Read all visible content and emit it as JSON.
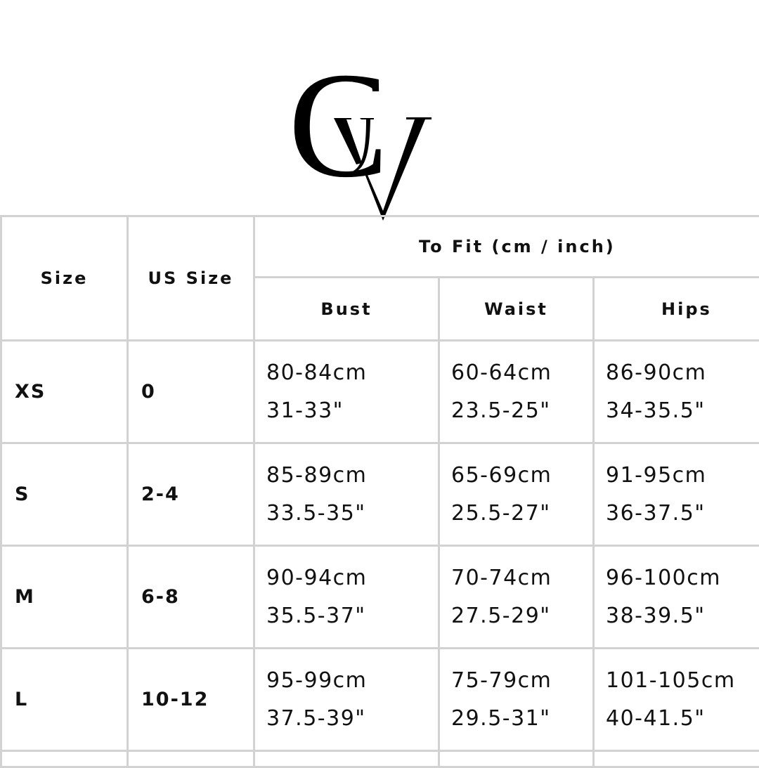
{
  "logo": {
    "text": "GV"
  },
  "table": {
    "headers": {
      "size": "Size",
      "us_size": "US Size",
      "to_fit": "To Fit (cm / inch)",
      "bust": "Bust",
      "waist": "Waist",
      "hips": "Hips"
    },
    "rows": [
      {
        "size": "XS",
        "us": "0",
        "bust_cm": "80-84cm",
        "bust_in": "31-33\"",
        "waist_cm": "60-64cm",
        "waist_in": "23.5-25\"",
        "hips_cm": "86-90cm",
        "hips_in": "34-35.5\""
      },
      {
        "size": "S",
        "us": "2-4",
        "bust_cm": "85-89cm",
        "bust_in": "33.5-35\"",
        "waist_cm": "65-69cm",
        "waist_in": "25.5-27\"",
        "hips_cm": "91-95cm",
        "hips_in": "36-37.5\""
      },
      {
        "size": "M",
        "us": "6-8",
        "bust_cm": "90-94cm",
        "bust_in": "35.5-37\"",
        "waist_cm": "70-74cm",
        "waist_in": "27.5-29\"",
        "hips_cm": "96-100cm",
        "hips_in": "38-39.5\""
      },
      {
        "size": "L",
        "us": "10-12",
        "bust_cm": "95-99cm",
        "bust_in": "37.5-39\"",
        "waist_cm": "75-79cm",
        "waist_in": "29.5-31\"",
        "hips_cm": "101-105cm",
        "hips_in": "40-41.5\""
      }
    ]
  }
}
